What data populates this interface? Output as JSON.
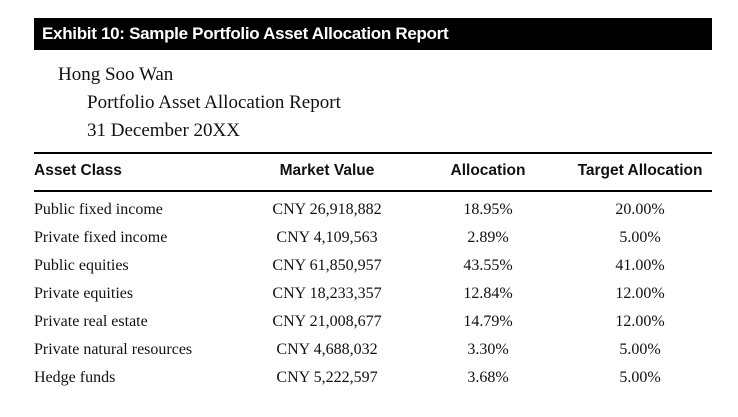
{
  "exhibit": {
    "title": "Exhibit 10: Sample Portfolio Asset Allocation Report"
  },
  "report": {
    "client_name": "Hong Soo Wan",
    "report_title": "Portfolio Asset Allocation Report",
    "date": "31 December 20XX"
  },
  "table": {
    "headers": {
      "asset_class": "Asset Class",
      "market_value": "Market Value",
      "allocation": "Allocation",
      "target_allocation": "Target Allocation"
    },
    "rows": [
      {
        "asset_class": "Public fixed income",
        "market_value": "CNY 26,918,882",
        "allocation": "18.95%",
        "target_allocation": "20.00%"
      },
      {
        "asset_class": "Private fixed income",
        "market_value": "CNY 4,109,563",
        "allocation": "2.89%",
        "target_allocation": "5.00%"
      },
      {
        "asset_class": "Public equities",
        "market_value": "CNY 61,850,957",
        "allocation": "43.55%",
        "target_allocation": "41.00%"
      },
      {
        "asset_class": "Private equities",
        "market_value": "CNY 18,233,357",
        "allocation": "12.84%",
        "target_allocation": "12.00%"
      },
      {
        "asset_class": "Private real estate",
        "market_value": "CNY 21,008,677",
        "allocation": "14.79%",
        "target_allocation": "12.00%"
      },
      {
        "asset_class": "Private natural resources",
        "market_value": "CNY 4,688,032",
        "allocation": "3.30%",
        "target_allocation": "5.00%"
      },
      {
        "asset_class": "Hedge funds",
        "market_value": "CNY 5,222,597",
        "allocation": "3.68%",
        "target_allocation": "5.00%"
      }
    ]
  }
}
